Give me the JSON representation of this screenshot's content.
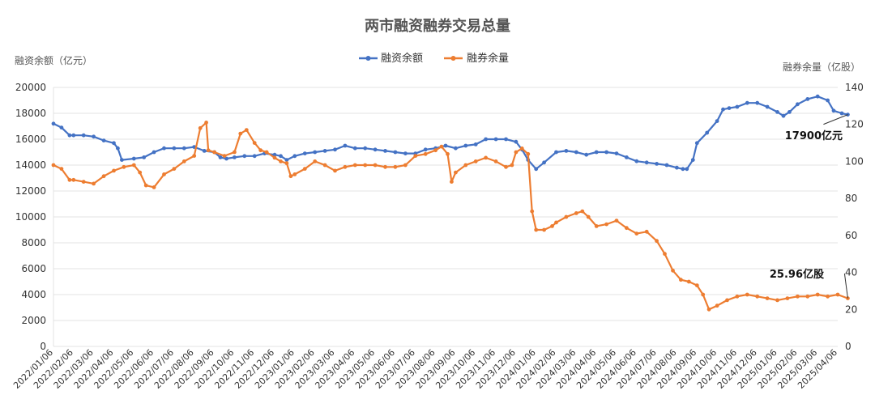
{
  "chart_data": {
    "type": "line",
    "title": "两市融资融券交易总量",
    "left_axis_label": "融资余额（亿元）",
    "right_axis_label": "融券余量（亿股）",
    "left_ylim": [
      0,
      20000
    ],
    "right_ylim": [
      0,
      140
    ],
    "left_ticks": [
      "0",
      "2000",
      "4000",
      "6000",
      "8000",
      "10000",
      "12000",
      "14000",
      "16000",
      "18000",
      "20000"
    ],
    "right_ticks": [
      "0",
      "20",
      "40",
      "60",
      "80",
      "100",
      "120",
      "140"
    ],
    "legend_position": "top-center",
    "grid": true,
    "categories": [
      "2022/01/06",
      "2022/02/06",
      "2022/03/06",
      "2022/04/06",
      "2022/05/06",
      "2022/06/06",
      "2022/07/06",
      "2022/08/06",
      "2022/09/06",
      "2022/10/06",
      "2022/11/06",
      "2022/12/06",
      "2023/01/06",
      "2023/02/06",
      "2023/03/06",
      "2023/04/06",
      "2023/05/06",
      "2023/06/06",
      "2023/07/06",
      "2023/08/06",
      "2023/09/06",
      "2023/10/06",
      "2023/11/06",
      "2023/12/06",
      "2024/01/06",
      "2024/02/06",
      "2024/03/06",
      "2024/04/06",
      "2024/05/06",
      "2024/06/06",
      "2024/07/06",
      "2024/08/06",
      "2024/09/06",
      "2024/10/06",
      "2024/11/06",
      "2024/12/06",
      "2025/01/06",
      "2025/02/06",
      "2025/03/06",
      "2025/04/06"
    ],
    "series": [
      {
        "name": "融资余额",
        "axis": "left",
        "color": "#4472C4",
        "points": [
          [
            0,
            17200
          ],
          [
            0.4,
            16900
          ],
          [
            0.8,
            16300
          ],
          [
            1,
            16300
          ],
          [
            1.5,
            16300
          ],
          [
            2,
            16200
          ],
          [
            2.5,
            15900
          ],
          [
            3,
            15700
          ],
          [
            3.2,
            15300
          ],
          [
            3.4,
            14400
          ],
          [
            4,
            14500
          ],
          [
            4.5,
            14600
          ],
          [
            5,
            15000
          ],
          [
            5.5,
            15300
          ],
          [
            6,
            15300
          ],
          [
            6.5,
            15300
          ],
          [
            7,
            15400
          ],
          [
            7.5,
            15100
          ],
          [
            8,
            15000
          ],
          [
            8.3,
            14600
          ],
          [
            8.6,
            14500
          ],
          [
            9,
            14600
          ],
          [
            9.5,
            14700
          ],
          [
            10,
            14700
          ],
          [
            10.5,
            14900
          ],
          [
            11,
            14800
          ],
          [
            11.3,
            14700
          ],
          [
            11.6,
            14400
          ],
          [
            12,
            14700
          ],
          [
            12.5,
            14900
          ],
          [
            13,
            15000
          ],
          [
            13.5,
            15100
          ],
          [
            14,
            15200
          ],
          [
            14.5,
            15500
          ],
          [
            15,
            15300
          ],
          [
            15.5,
            15300
          ],
          [
            16,
            15200
          ],
          [
            16.5,
            15100
          ],
          [
            17,
            15000
          ],
          [
            17.5,
            14900
          ],
          [
            18,
            14900
          ],
          [
            18.5,
            15200
          ],
          [
            19,
            15300
          ],
          [
            19.5,
            15500
          ],
          [
            20,
            15300
          ],
          [
            20.5,
            15500
          ],
          [
            21,
            15600
          ],
          [
            21.5,
            16000
          ],
          [
            22,
            16000
          ],
          [
            22.5,
            16000
          ],
          [
            23,
            15800
          ],
          [
            23.3,
            15200
          ],
          [
            23.6,
            14400
          ],
          [
            24,
            13700
          ],
          [
            24.4,
            14200
          ],
          [
            25,
            15000
          ],
          [
            25.5,
            15100
          ],
          [
            26,
            15000
          ],
          [
            26.5,
            14800
          ],
          [
            27,
            15000
          ],
          [
            27.5,
            15000
          ],
          [
            28,
            14900
          ],
          [
            28.5,
            14600
          ],
          [
            29,
            14300
          ],
          [
            29.5,
            14200
          ],
          [
            30,
            14100
          ],
          [
            30.5,
            14000
          ],
          [
            31,
            13800
          ],
          [
            31.3,
            13700
          ],
          [
            31.5,
            13700
          ],
          [
            31.8,
            14400
          ],
          [
            32,
            15700
          ],
          [
            32.5,
            16500
          ],
          [
            33,
            17400
          ],
          [
            33.3,
            18300
          ],
          [
            33.6,
            18400
          ],
          [
            34,
            18500
          ],
          [
            34.5,
            18800
          ],
          [
            35,
            18800
          ],
          [
            35.5,
            18500
          ],
          [
            36,
            18100
          ],
          [
            36.3,
            17800
          ],
          [
            36.6,
            18100
          ],
          [
            37,
            18700
          ],
          [
            37.5,
            19100
          ],
          [
            38,
            19300
          ],
          [
            38.5,
            19000
          ],
          [
            38.8,
            18200
          ],
          [
            39.2,
            18000
          ],
          [
            39.5,
            17900
          ]
        ]
      },
      {
        "name": "融券余量",
        "axis": "right",
        "color": "#ED7D31",
        "points": [
          [
            0,
            98
          ],
          [
            0.4,
            96
          ],
          [
            0.8,
            90
          ],
          [
            1,
            90
          ],
          [
            1.5,
            89
          ],
          [
            2,
            88
          ],
          [
            2.5,
            92
          ],
          [
            3,
            95
          ],
          [
            3.5,
            97
          ],
          [
            4,
            98
          ],
          [
            4.3,
            94
          ],
          [
            4.6,
            87
          ],
          [
            5,
            86
          ],
          [
            5.5,
            93
          ],
          [
            6,
            96
          ],
          [
            6.5,
            100
          ],
          [
            7,
            103
          ],
          [
            7.3,
            118
          ],
          [
            7.6,
            121
          ],
          [
            7.7,
            106
          ],
          [
            8,
            105
          ],
          [
            8.5,
            103
          ],
          [
            9,
            105
          ],
          [
            9.3,
            115
          ],
          [
            9.6,
            117
          ],
          [
            10,
            110
          ],
          [
            10.3,
            106
          ],
          [
            10.6,
            105
          ],
          [
            11,
            102
          ],
          [
            11.3,
            100
          ],
          [
            11.6,
            99
          ],
          [
            11.8,
            92
          ],
          [
            12,
            93
          ],
          [
            12.5,
            96
          ],
          [
            13,
            100
          ],
          [
            13.5,
            98
          ],
          [
            14,
            95
          ],
          [
            14.5,
            97
          ],
          [
            15,
            98
          ],
          [
            15.5,
            98
          ],
          [
            16,
            98
          ],
          [
            16.5,
            97
          ],
          [
            17,
            97
          ],
          [
            17.5,
            98
          ],
          [
            18,
            103
          ],
          [
            18.5,
            104
          ],
          [
            19,
            106
          ],
          [
            19.3,
            108
          ],
          [
            19.6,
            104
          ],
          [
            19.8,
            89
          ],
          [
            20,
            94
          ],
          [
            20.5,
            98
          ],
          [
            21,
            100
          ],
          [
            21.5,
            102
          ],
          [
            22,
            100
          ],
          [
            22.5,
            97
          ],
          [
            22.8,
            98
          ],
          [
            23,
            105
          ],
          [
            23.3,
            107
          ],
          [
            23.6,
            104
          ],
          [
            23.8,
            73
          ],
          [
            24,
            63
          ],
          [
            24.4,
            63
          ],
          [
            24.8,
            65
          ],
          [
            25,
            67
          ],
          [
            25.5,
            70
          ],
          [
            26,
            72
          ],
          [
            26.3,
            73
          ],
          [
            26.6,
            70
          ],
          [
            27,
            65
          ],
          [
            27.5,
            66
          ],
          [
            28,
            68
          ],
          [
            28.5,
            64
          ],
          [
            29,
            61
          ],
          [
            29.5,
            62
          ],
          [
            30,
            57
          ],
          [
            30.4,
            50
          ],
          [
            30.8,
            41
          ],
          [
            31.2,
            36
          ],
          [
            31.6,
            35
          ],
          [
            32,
            33
          ],
          [
            32.3,
            28
          ],
          [
            32.6,
            20
          ],
          [
            33,
            22
          ],
          [
            33.5,
            25
          ],
          [
            34,
            27
          ],
          [
            34.5,
            28
          ],
          [
            35,
            27
          ],
          [
            35.5,
            26
          ],
          [
            36,
            25
          ],
          [
            36.5,
            26
          ],
          [
            37,
            27
          ],
          [
            37.5,
            27
          ],
          [
            38,
            28
          ],
          [
            38.5,
            27
          ],
          [
            39,
            28
          ],
          [
            39.5,
            26
          ]
        ]
      }
    ],
    "annotations": {
      "financing_end": "17900亿元",
      "securities_end": "25.96亿股"
    }
  }
}
